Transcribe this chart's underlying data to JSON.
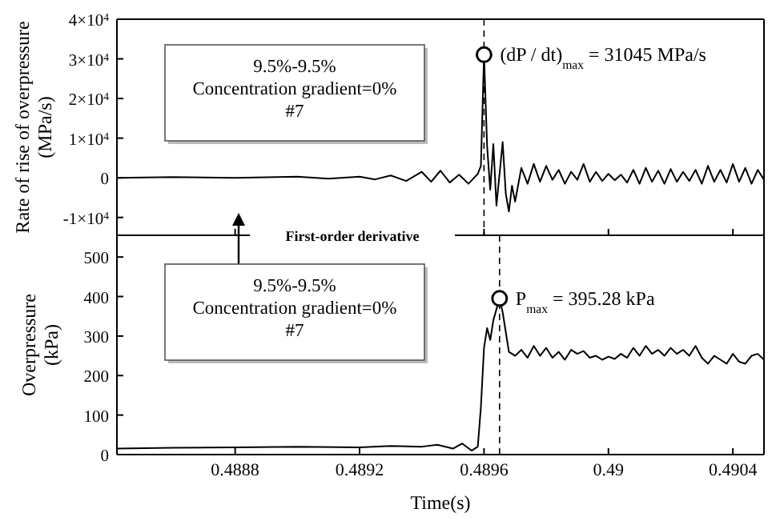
{
  "chart_data": [
    {
      "type": "line",
      "ylabel": "Rate of rise of overpressure (MPa/s)",
      "xlim": [
        0.48842,
        0.4905
      ],
      "xticks": [
        0.4888,
        0.4892,
        0.4896,
        0.49,
        0.4904
      ],
      "ylim": [
        -14500,
        40000
      ],
      "yticks": [
        {
          "value": -10000,
          "label": "-1×10$^{4}$"
        },
        0,
        {
          "value": 10000,
          "label": "1×10$^{4}$"
        },
        {
          "value": 20000,
          "label": "2×10$^{4}$"
        },
        {
          "value": 30000,
          "label": "3×10$^{4}$"
        },
        {
          "value": 40000,
          "label": "4×10$^{4}$"
        }
      ],
      "tick_labels": "y",
      "line_style": "solid",
      "series": [
        {
          "color": "#000000",
          "x": [
            0.48842,
            0.4886,
            0.4888,
            0.489,
            0.4891,
            0.4892,
            0.48925,
            0.4893,
            0.48935,
            0.4894,
            0.48943,
            0.48946,
            0.48949,
            0.48952,
            0.48955,
            0.48958,
            0.48959,
            0.4896,
            0.48961,
            0.48962,
            0.48963,
            0.48964,
            0.48966,
            0.48967,
            0.48968,
            0.48969,
            0.4897,
            0.48972,
            0.48974,
            0.48976,
            0.48978,
            0.4898,
            0.48982,
            0.48984,
            0.48986,
            0.48988,
            0.4899,
            0.48992,
            0.48994,
            0.48996,
            0.48998,
            0.49,
            0.49002,
            0.49004,
            0.49006,
            0.49008,
            0.4901,
            0.49012,
            0.49014,
            0.49016,
            0.49018,
            0.4902,
            0.49022,
            0.49024,
            0.49026,
            0.49028,
            0.4903,
            0.49032,
            0.49034,
            0.49036,
            0.49038,
            0.4904,
            0.49042,
            0.49044,
            0.49046,
            0.49048,
            0.4905
          ],
          "values": [
            0,
            200,
            0,
            300,
            -200,
            300,
            -400,
            600,
            -800,
            1500,
            -1000,
            1800,
            -1200,
            800,
            -1500,
            1000,
            3000,
            31045,
            8000,
            -3000,
            8500,
            -7000,
            9000,
            -4000,
            -8500,
            -2000,
            -6000,
            2500,
            -1500,
            3500,
            -1000,
            3000,
            -500,
            2000,
            -1500,
            1500,
            -500,
            3500,
            -1000,
            1500,
            -800,
            1000,
            -600,
            800,
            -1200,
            2000,
            -1500,
            2500,
            -1000,
            1800,
            -1500,
            2200,
            -1000,
            1500,
            -800,
            2000,
            -1500,
            3000,
            -1000,
            2000,
            -1200,
            3500,
            -1000,
            2500,
            -1500,
            2000,
            -500
          ]
        },
        {
          "type": "scatter",
          "marker": "circle",
          "color": "#000000",
          "x": [
            0.4896
          ],
          "values": [
            31045
          ]
        }
      ],
      "ref_lines": [
        {
          "axis": "x",
          "value": 0.4896,
          "line_style": "dashed"
        }
      ],
      "annotations": [
        "9.5%-9.5%",
        "Concentration gradient=0%",
        "#7",
        "First-order derivative",
        {
          "text": "(dP / dt)$_{max}$ = 31045 MPa/s",
          "x": 0.4896,
          "y": 31045
        }
      ]
    },
    {
      "type": "line",
      "xlabel": "Time(s)",
      "ylabel": "Overpressure (kPa)",
      "xlim": [
        0.48842,
        0.4905
      ],
      "xticks": [
        0.4888,
        0.4892,
        0.4896,
        0.49,
        0.4904
      ],
      "ylim": [
        0,
        555
      ],
      "yticks": [
        0,
        100,
        200,
        300,
        400,
        500
      ],
      "line_style": "solid",
      "series": [
        {
          "color": "#000000",
          "x": [
            0.48842,
            0.4886,
            0.4888,
            0.489,
            0.4892,
            0.4893,
            0.4894,
            0.48945,
            0.4895,
            0.48953,
            0.48956,
            0.48958,
            0.48959,
            0.4896,
            0.48961,
            0.48962,
            0.48963,
            0.48965,
            0.48966,
            0.48968,
            0.4897,
            0.48972,
            0.48974,
            0.48976,
            0.48978,
            0.4898,
            0.48982,
            0.48984,
            0.48986,
            0.48988,
            0.4899,
            0.48992,
            0.48994,
            0.48996,
            0.48998,
            0.49,
            0.49002,
            0.49004,
            0.49006,
            0.49008,
            0.4901,
            0.49012,
            0.49014,
            0.49016,
            0.49018,
            0.4902,
            0.49022,
            0.49024,
            0.49026,
            0.49028,
            0.4903,
            0.49032,
            0.49034,
            0.49036,
            0.49038,
            0.4904,
            0.49042,
            0.49044,
            0.49046,
            0.49048,
            0.4905
          ],
          "values": [
            15,
            17,
            18,
            20,
            18,
            22,
            20,
            25,
            15,
            28,
            10,
            20,
            120,
            270,
            320,
            290,
            340,
            395.28,
            360,
            260,
            250,
            265,
            245,
            275,
            250,
            270,
            245,
            260,
            240,
            265,
            255,
            262,
            245,
            250,
            240,
            248,
            242,
            255,
            245,
            270,
            250,
            275,
            255,
            265,
            250,
            270,
            255,
            265,
            250,
            275,
            245,
            230,
            250,
            240,
            230,
            255,
            235,
            230,
            250,
            255,
            240
          ]
        },
        {
          "type": "scatter",
          "marker": "circle",
          "color": "#000000",
          "x": [
            0.48965
          ],
          "values": [
            395.28
          ]
        }
      ],
      "ref_lines": [
        {
          "axis": "x",
          "value": 0.48965,
          "line_style": "dashed"
        }
      ],
      "annotations": [
        "9.5%-9.5%",
        "Concentration gradient=0%",
        "#7",
        {
          "text": "P$_{max}$ = 395.28 kPa",
          "x": 0.48965,
          "y": 395.28
        }
      ]
    }
  ]
}
